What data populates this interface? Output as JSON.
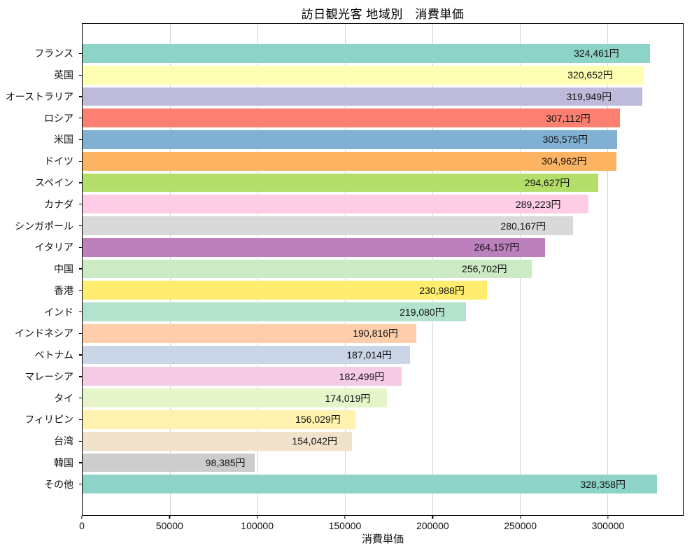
{
  "chart_data": {
    "type": "bar",
    "orientation": "horizontal",
    "title": "訪日観光客 地域別　消費単価",
    "xlabel": "消費単価",
    "ylabel": "",
    "legend": "none",
    "grid": "vertical",
    "categories": [
      "フランス",
      "英国",
      "オーストラリア",
      "ロシア",
      "米国",
      "ドイツ",
      "スペイン",
      "カナダ",
      "シンガポール",
      "イタリア",
      "中国",
      "香港",
      "インド",
      "インドネシア",
      "ベトナム",
      "マレーシア",
      "タイ",
      "フィリピン",
      "台湾",
      "韓国",
      "その他"
    ],
    "values": [
      324461,
      320652,
      319949,
      307112,
      305575,
      304962,
      294627,
      289223,
      280167,
      264157,
      256702,
      230988,
      219080,
      190816,
      187014,
      182499,
      174019,
      156029,
      154042,
      98385,
      328358
    ],
    "value_labels": [
      "324,461円",
      "320,652円",
      "319,949円",
      "307,112円",
      "305,575円",
      "304,962円",
      "294,627円",
      "289,223円",
      "280,167円",
      "264,157円",
      "256,702円",
      "230,988円",
      "219,080円",
      "190,816円",
      "187,014円",
      "182,499円",
      "174,019円",
      "156,029円",
      "154,042円",
      "98,385円",
      "328,358円"
    ],
    "bar_colors": [
      "#8dd3c7",
      "#ffffb3",
      "#bebada",
      "#fb8072",
      "#80b1d3",
      "#fdb462",
      "#b3de69",
      "#fccde5",
      "#d9d9d9",
      "#bc80bd",
      "#ccebc5",
      "#ffed6f",
      "#b3e2cd",
      "#fdcdac",
      "#cbd5e8",
      "#f4cae4",
      "#e6f5c9",
      "#fff2ae",
      "#f1e2cc",
      "#cccccc",
      "#8dd3c7"
    ],
    "xlim": [
      0,
      343100
    ],
    "xticks": [
      0,
      50000,
      100000,
      150000,
      200000,
      250000,
      300000
    ],
    "xtick_labels": [
      "0",
      "50000",
      "100000",
      "150000",
      "200000",
      "250000",
      "300000"
    ],
    "colors": {
      "background": "#ffffff",
      "spine": "#000000",
      "gridline": "#d4d4d4",
      "text": "#111111"
    }
  }
}
